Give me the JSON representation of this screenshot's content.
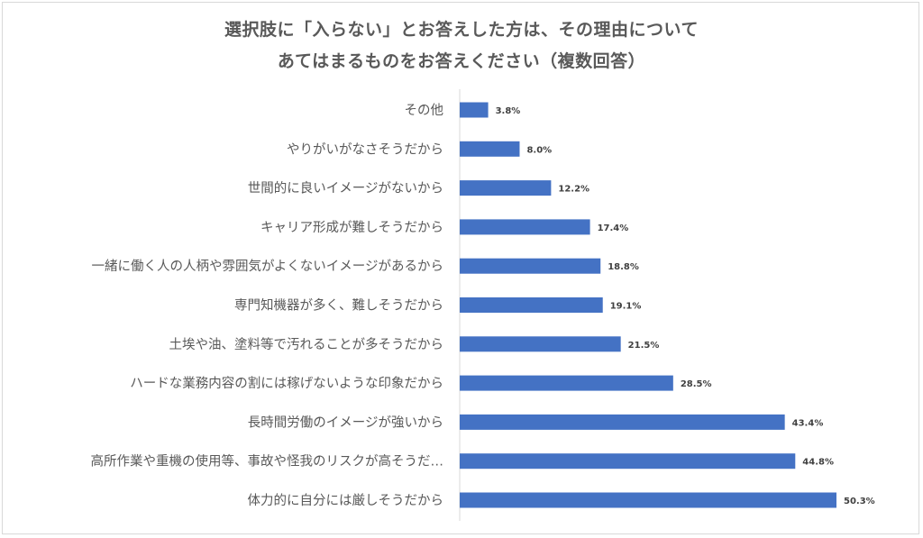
{
  "chart_data": {
    "type": "bar",
    "orientation": "horizontal",
    "title_line1": "選択肢に「入らない」とお答えした方は、その理由について",
    "title_line2": "あてはまるものをお答えください（複数回答）",
    "categories": [
      "その他",
      "やりがいがなさそうだから",
      "世間的に良いイメージがないから",
      "キャリア形成が難しそうだから",
      "一緒に働く人の人柄や雰囲気がよくないイメージがあるから",
      "専門知機器が多く、難しそうだから",
      "土埃や油、塗料等で汚れることが多そうだから",
      "ハードな業務内容の割には稼げないような印象だから",
      "長時間労働のイメージが強いから",
      "高所作業や重機の使用等、事故や怪我のリスクが高そうだ…",
      "体力的に自分には厳しそうだから"
    ],
    "values": [
      3.8,
      8.0,
      12.2,
      17.4,
      18.8,
      19.1,
      21.5,
      28.5,
      43.4,
      44.8,
      50.3
    ],
    "value_labels": [
      "3.8%",
      "8.0%",
      "12.2%",
      "17.4%",
      "18.8%",
      "19.1%",
      "21.5%",
      "28.5%",
      "43.4%",
      "44.8%",
      "50.3%"
    ],
    "unit": "%",
    "xlim": [
      0,
      60
    ],
    "grid": false,
    "legend": "none",
    "bar_color": "#4472C4"
  }
}
